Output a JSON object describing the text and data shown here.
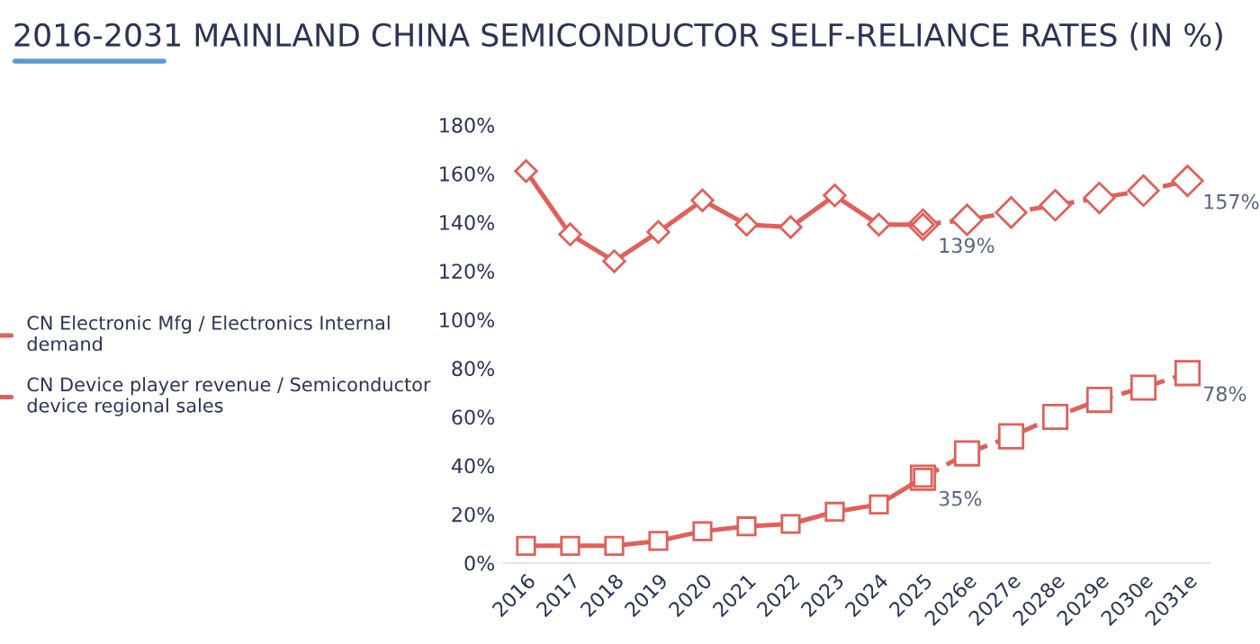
{
  "chart_data": {
    "type": "line",
    "title": "2016-2031 MAINLAND CHINA SEMICONDUCTOR SELF-RELIANCE RATES (IN %)",
    "categories": [
      "2016",
      "2017",
      "2018",
      "2019",
      "2020",
      "2021",
      "2022",
      "2023",
      "2024",
      "2025",
      "2026e",
      "2027e",
      "2028e",
      "2029e",
      "2030e",
      "2031e"
    ],
    "series": [
      {
        "name": "CN Electronic Mfg / Electronics Internal demand",
        "color": "#e0605a",
        "marker": "diamond",
        "line_style": "solid",
        "values": [
          161,
          135,
          124,
          136,
          149,
          139,
          138,
          151,
          139,
          139,
          null,
          null,
          null,
          null,
          null,
          null
        ],
        "value_labels": [
          null,
          null,
          null,
          null,
          null,
          null,
          null,
          null,
          null,
          "139%",
          null,
          null,
          null,
          null,
          null,
          null
        ]
      },
      {
        "color": "#e0605a",
        "marker": "diamond",
        "line_style": "dashed",
        "values": [
          null,
          null,
          null,
          null,
          null,
          null,
          null,
          null,
          null,
          139,
          141,
          144,
          147,
          150,
          153,
          157
        ],
        "value_labels": [
          null,
          null,
          null,
          null,
          null,
          null,
          null,
          null,
          null,
          null,
          null,
          null,
          null,
          null,
          null,
          "157%"
        ]
      },
      {
        "name": "CN Device player revenue / Semiconductor device regional sales",
        "color": "#e0605a",
        "marker": "square",
        "line_style": "solid",
        "values": [
          7,
          7,
          7,
          9,
          13,
          15,
          16,
          21,
          24,
          35,
          null,
          null,
          null,
          null,
          null,
          null
        ],
        "value_labels": [
          null,
          null,
          null,
          null,
          null,
          null,
          null,
          null,
          null,
          "35%",
          null,
          null,
          null,
          null,
          null,
          null
        ]
      },
      {
        "color": "#e0605a",
        "marker": "square",
        "line_style": "dashed",
        "values": [
          null,
          null,
          null,
          null,
          null,
          null,
          null,
          null,
          null,
          35,
          45,
          52,
          60,
          67,
          72,
          78
        ],
        "value_labels": [
          null,
          null,
          null,
          null,
          null,
          null,
          null,
          null,
          null,
          null,
          null,
          null,
          null,
          null,
          null,
          "78%"
        ]
      }
    ],
    "ylim": [
      0,
      180
    ],
    "yticks": [
      {
        "value": 0,
        "label": "0%"
      },
      {
        "value": 20,
        "label": "20%"
      },
      {
        "value": 40,
        "label": "40%"
      },
      {
        "value": 60,
        "label": "60%"
      },
      {
        "value": 80,
        "label": "80%"
      },
      {
        "value": 100,
        "label": "100%"
      },
      {
        "value": 120,
        "label": "120%"
      },
      {
        "value": 140,
        "label": "140%"
      },
      {
        "value": 160,
        "label": "160%"
      },
      {
        "value": 180,
        "label": "180%"
      }
    ],
    "grid": false,
    "legend": "left"
  }
}
